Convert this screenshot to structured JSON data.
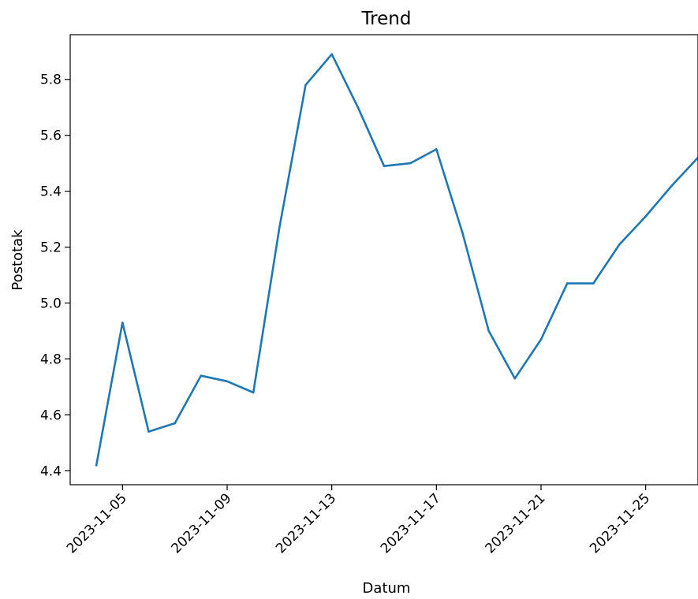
{
  "chart_data": {
    "type": "line",
    "title": "Trend",
    "xlabel": "Datum",
    "ylabel": "Postotak",
    "grid": false,
    "legend": "none",
    "xlim": [
      "2023-11-03",
      "2023-11-27"
    ],
    "ylim": [
      4.35,
      5.96
    ],
    "x_ticks": [
      "2023-11-05",
      "2023-11-09",
      "2023-11-13",
      "2023-11-17",
      "2023-11-21",
      "2023-11-25"
    ],
    "y_ticks": [
      "4.4",
      "4.6",
      "4.8",
      "5.0",
      "5.2",
      "5.4",
      "5.6",
      "5.8"
    ],
    "series": [
      {
        "color": "#1f77b4",
        "x": [
          "2023-11-04",
          "2023-11-05",
          "2023-11-06",
          "2023-11-07",
          "2023-11-08",
          "2023-11-09",
          "2023-11-10",
          "2023-11-11",
          "2023-11-12",
          "2023-11-13",
          "2023-11-14",
          "2023-11-15",
          "2023-11-16",
          "2023-11-17",
          "2023-11-18",
          "2023-11-19",
          "2023-11-20",
          "2023-11-21",
          "2023-11-22",
          "2023-11-23",
          "2023-11-24",
          "2023-11-25",
          "2023-11-26",
          "2023-11-27"
        ],
        "y": [
          4.42,
          4.93,
          4.54,
          4.57,
          4.74,
          4.72,
          4.68,
          5.27,
          5.78,
          5.89,
          5.7,
          5.49,
          5.5,
          5.55,
          5.25,
          4.9,
          4.73,
          4.87,
          5.07,
          5.07,
          5.21,
          5.31,
          5.42,
          5.52
        ]
      }
    ]
  }
}
